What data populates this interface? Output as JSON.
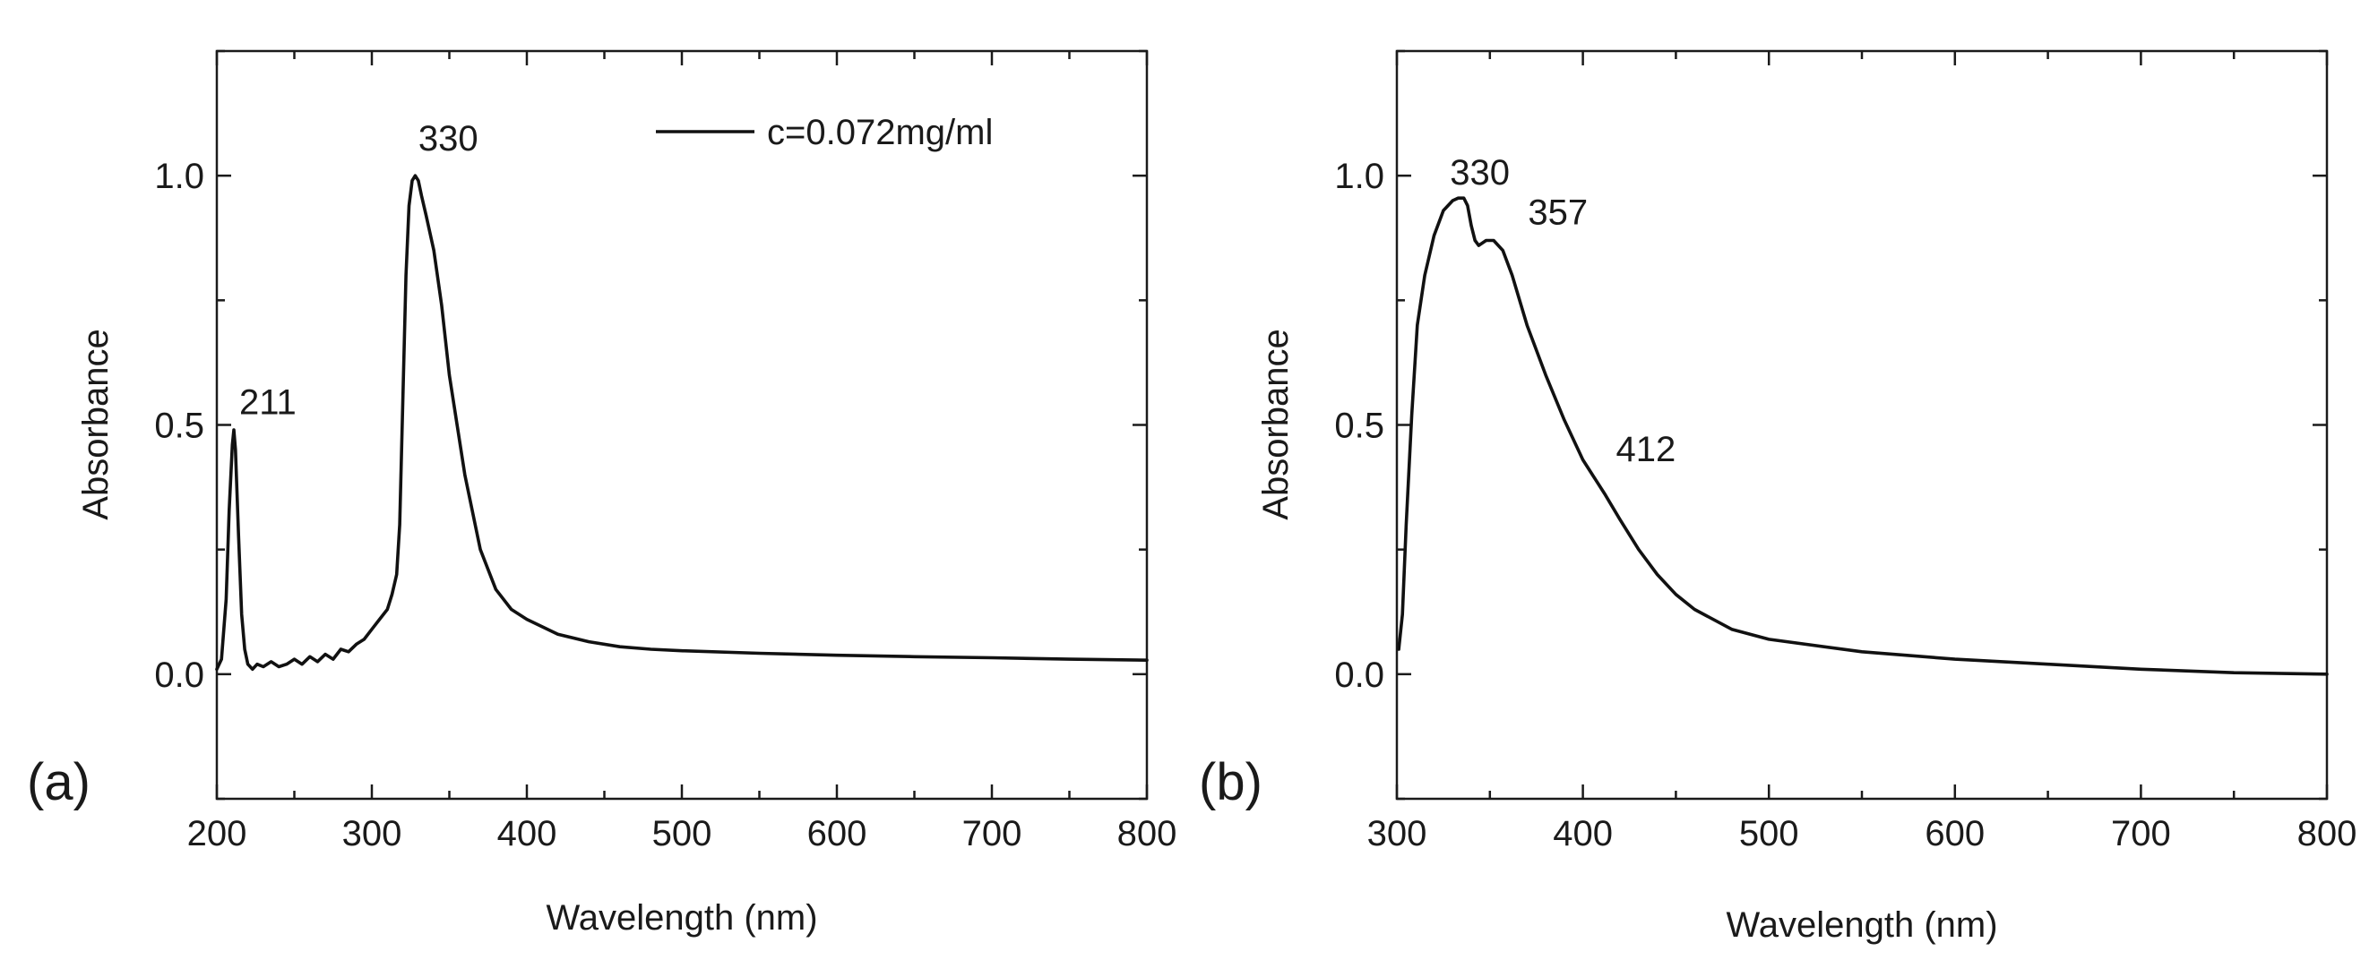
{
  "chart_data": [
    {
      "type": "line",
      "panel_label": "(a)",
      "xlabel": "Wavelength (nm)",
      "ylabel": "Absorbance",
      "xlim": [
        200,
        800
      ],
      "ylim": [
        -0.25,
        1.25
      ],
      "xticks": [
        200,
        300,
        400,
        500,
        600,
        700,
        800
      ],
      "xtick_labels": [
        "200",
        "300",
        "400",
        "500",
        "600",
        "700",
        "800"
      ],
      "yticks": [
        0.0,
        0.5,
        1.0
      ],
      "ytick_labels": [
        "0.0",
        "0.5",
        "1.0"
      ],
      "legend": {
        "position": "top-right",
        "entries": [
          "c=0.072mg/ml"
        ]
      },
      "annotations": [
        {
          "text": "211",
          "x": 211,
          "y": 0.5
        },
        {
          "text": "330",
          "x": 330,
          "y": 1.0
        }
      ],
      "series": [
        {
          "name": "c=0.072mg/ml",
          "x": [
            200,
            203,
            206,
            208,
            210,
            211,
            212,
            214,
            216,
            218,
            220,
            223,
            226,
            230,
            235,
            240,
            245,
            250,
            255,
            260,
            265,
            270,
            275,
            280,
            285,
            290,
            295,
            300,
            305,
            310,
            313,
            316,
            318,
            320,
            322,
            324,
            326,
            328,
            330,
            332,
            335,
            340,
            345,
            350,
            360,
            370,
            380,
            390,
            400,
            420,
            440,
            460,
            480,
            500,
            550,
            600,
            650,
            700,
            750,
            800
          ],
          "y": [
            0.01,
            0.03,
            0.15,
            0.33,
            0.46,
            0.49,
            0.45,
            0.28,
            0.12,
            0.05,
            0.02,
            0.01,
            0.02,
            0.015,
            0.025,
            0.015,
            0.02,
            0.03,
            0.02,
            0.035,
            0.025,
            0.04,
            0.03,
            0.05,
            0.045,
            0.06,
            0.07,
            0.09,
            0.11,
            0.13,
            0.16,
            0.2,
            0.3,
            0.55,
            0.8,
            0.94,
            0.99,
            1.0,
            0.99,
            0.96,
            0.92,
            0.85,
            0.74,
            0.6,
            0.4,
            0.25,
            0.17,
            0.13,
            0.11,
            0.08,
            0.065,
            0.055,
            0.05,
            0.047,
            0.042,
            0.038,
            0.035,
            0.033,
            0.03,
            0.028
          ]
        }
      ]
    },
    {
      "type": "line",
      "panel_label": "(b)",
      "xlabel": "Wavelength (nm)",
      "ylabel": "Absorbance",
      "xlim": [
        300,
        800
      ],
      "ylim": [
        -0.25,
        1.25
      ],
      "xticks": [
        300,
        400,
        500,
        600,
        700,
        800
      ],
      "xtick_labels": [
        "300",
        "400",
        "500",
        "600",
        "700",
        "800"
      ],
      "yticks": [
        0.0,
        0.5,
        1.0
      ],
      "ytick_labels": [
        "0.0",
        "0.5",
        "1.0"
      ],
      "annotations": [
        {
          "text": "330",
          "x": 330,
          "y": 0.95
        },
        {
          "text": "357",
          "x": 357,
          "y": 0.87
        },
        {
          "text": "412",
          "x": 412,
          "y": 0.37
        }
      ],
      "series": [
        {
          "name": "absorbance",
          "x": [
            301,
            303,
            305,
            308,
            311,
            315,
            320,
            325,
            330,
            333,
            336,
            338,
            340,
            342,
            344,
            348,
            352,
            357,
            362,
            370,
            380,
            390,
            400,
            412,
            420,
            430,
            440,
            450,
            460,
            480,
            500,
            550,
            600,
            650,
            700,
            750,
            800
          ],
          "y": [
            0.05,
            0.12,
            0.3,
            0.52,
            0.7,
            0.8,
            0.88,
            0.93,
            0.95,
            0.955,
            0.955,
            0.94,
            0.9,
            0.87,
            0.86,
            0.87,
            0.87,
            0.85,
            0.8,
            0.7,
            0.6,
            0.51,
            0.43,
            0.36,
            0.31,
            0.25,
            0.2,
            0.16,
            0.13,
            0.09,
            0.07,
            0.045,
            0.03,
            0.02,
            0.01,
            0.003,
            0.0
          ]
        }
      ]
    }
  ]
}
